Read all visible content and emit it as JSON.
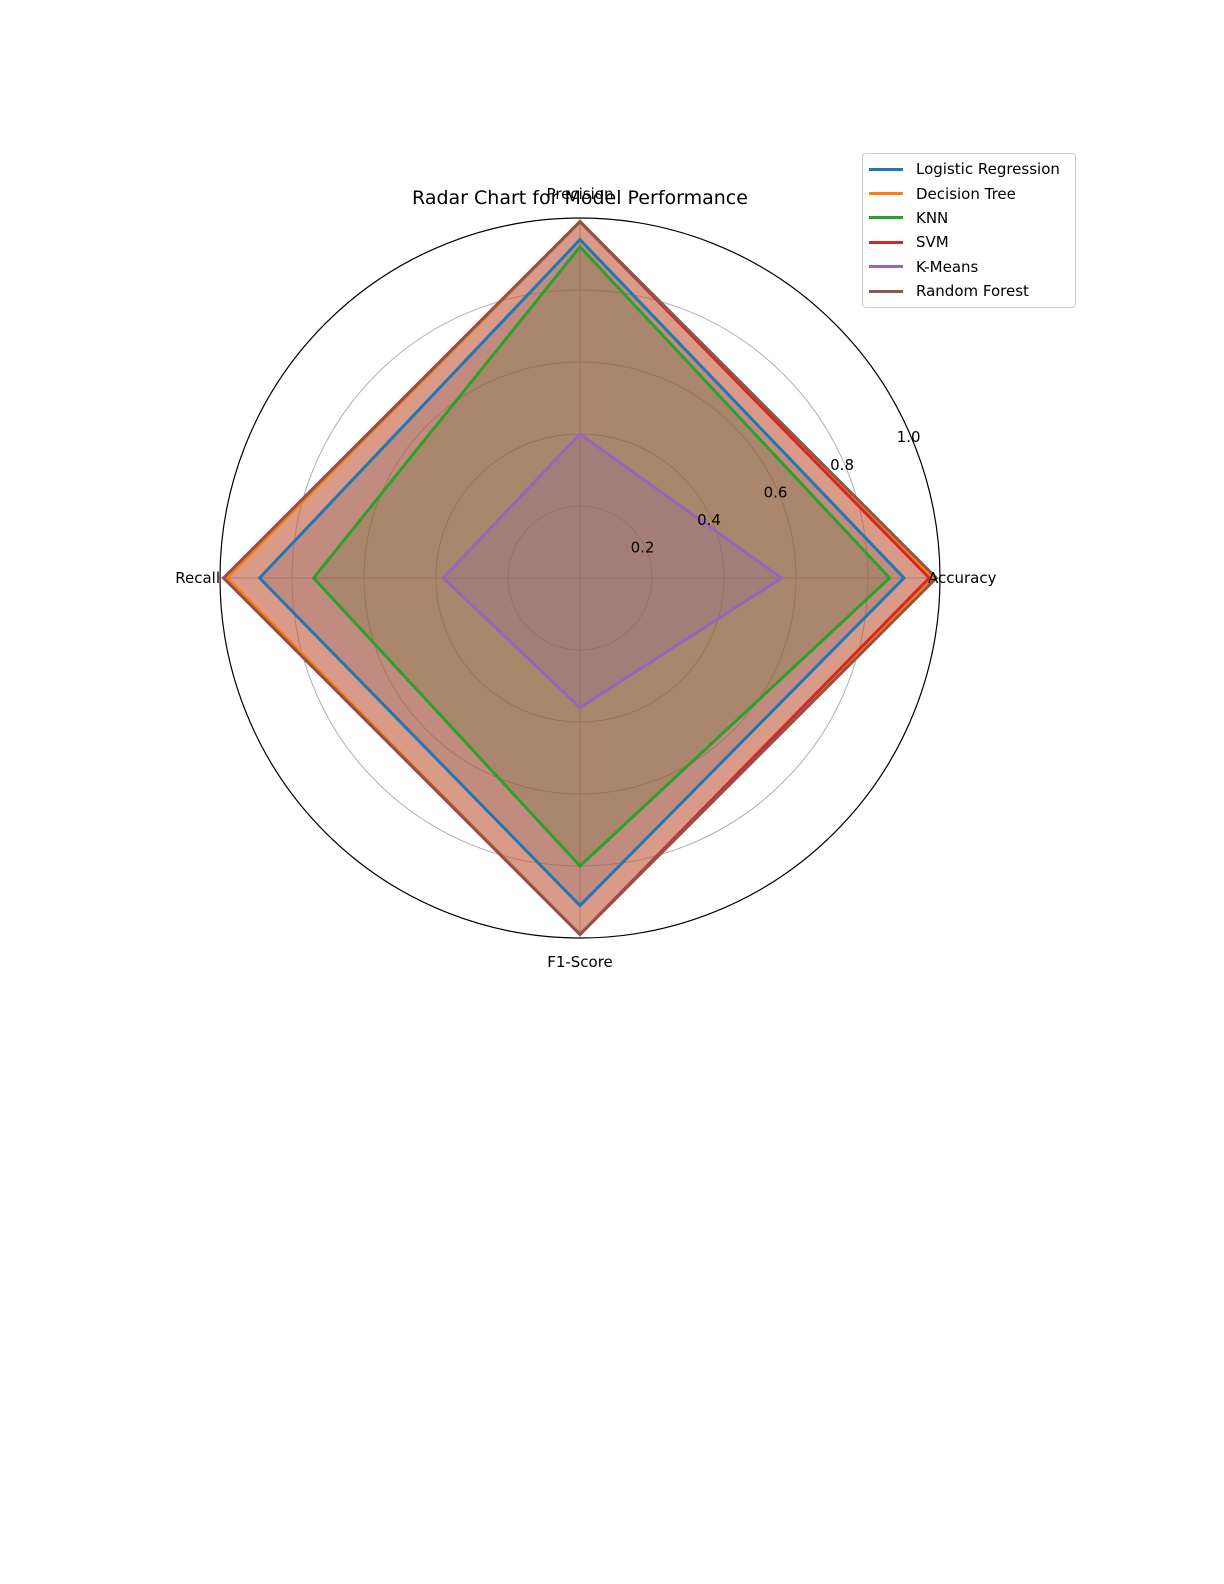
{
  "chart_data": {
    "type": "radar",
    "title": "Radar Chart for Model Performance",
    "axes": [
      "Accuracy",
      "Precision",
      "Recall",
      "F1-Score"
    ],
    "radial_ticks": [
      0.2,
      0.4,
      0.6,
      0.8,
      1.0
    ],
    "radial_tick_labels": [
      "0.2",
      "0.4",
      "0.6",
      "0.8",
      "1.0"
    ],
    "rlim": [
      0,
      1.0
    ],
    "grid": true,
    "legend_position": "top-right",
    "series": [
      {
        "name": "Logistic Regression",
        "color": "#1f77b4",
        "values": [
          0.9,
          0.94,
          0.89,
          0.91
        ]
      },
      {
        "name": "Decision Tree",
        "color": "#ff7f0e",
        "values": [
          0.98,
          0.99,
          0.98,
          0.99
        ]
      },
      {
        "name": "KNN",
        "color": "#2ca02c",
        "values": [
          0.86,
          0.92,
          0.74,
          0.8
        ]
      },
      {
        "name": "SVM",
        "color": "#d62728",
        "values": [
          0.97,
          0.99,
          0.99,
          0.99
        ]
      },
      {
        "name": "K-Means",
        "color": "#9467bd",
        "values": [
          0.56,
          0.4,
          0.38,
          0.36
        ]
      },
      {
        "name": "Random Forest",
        "color": "#8c564b",
        "values": [
          0.99,
          0.99,
          0.99,
          0.99
        ]
      }
    ]
  }
}
